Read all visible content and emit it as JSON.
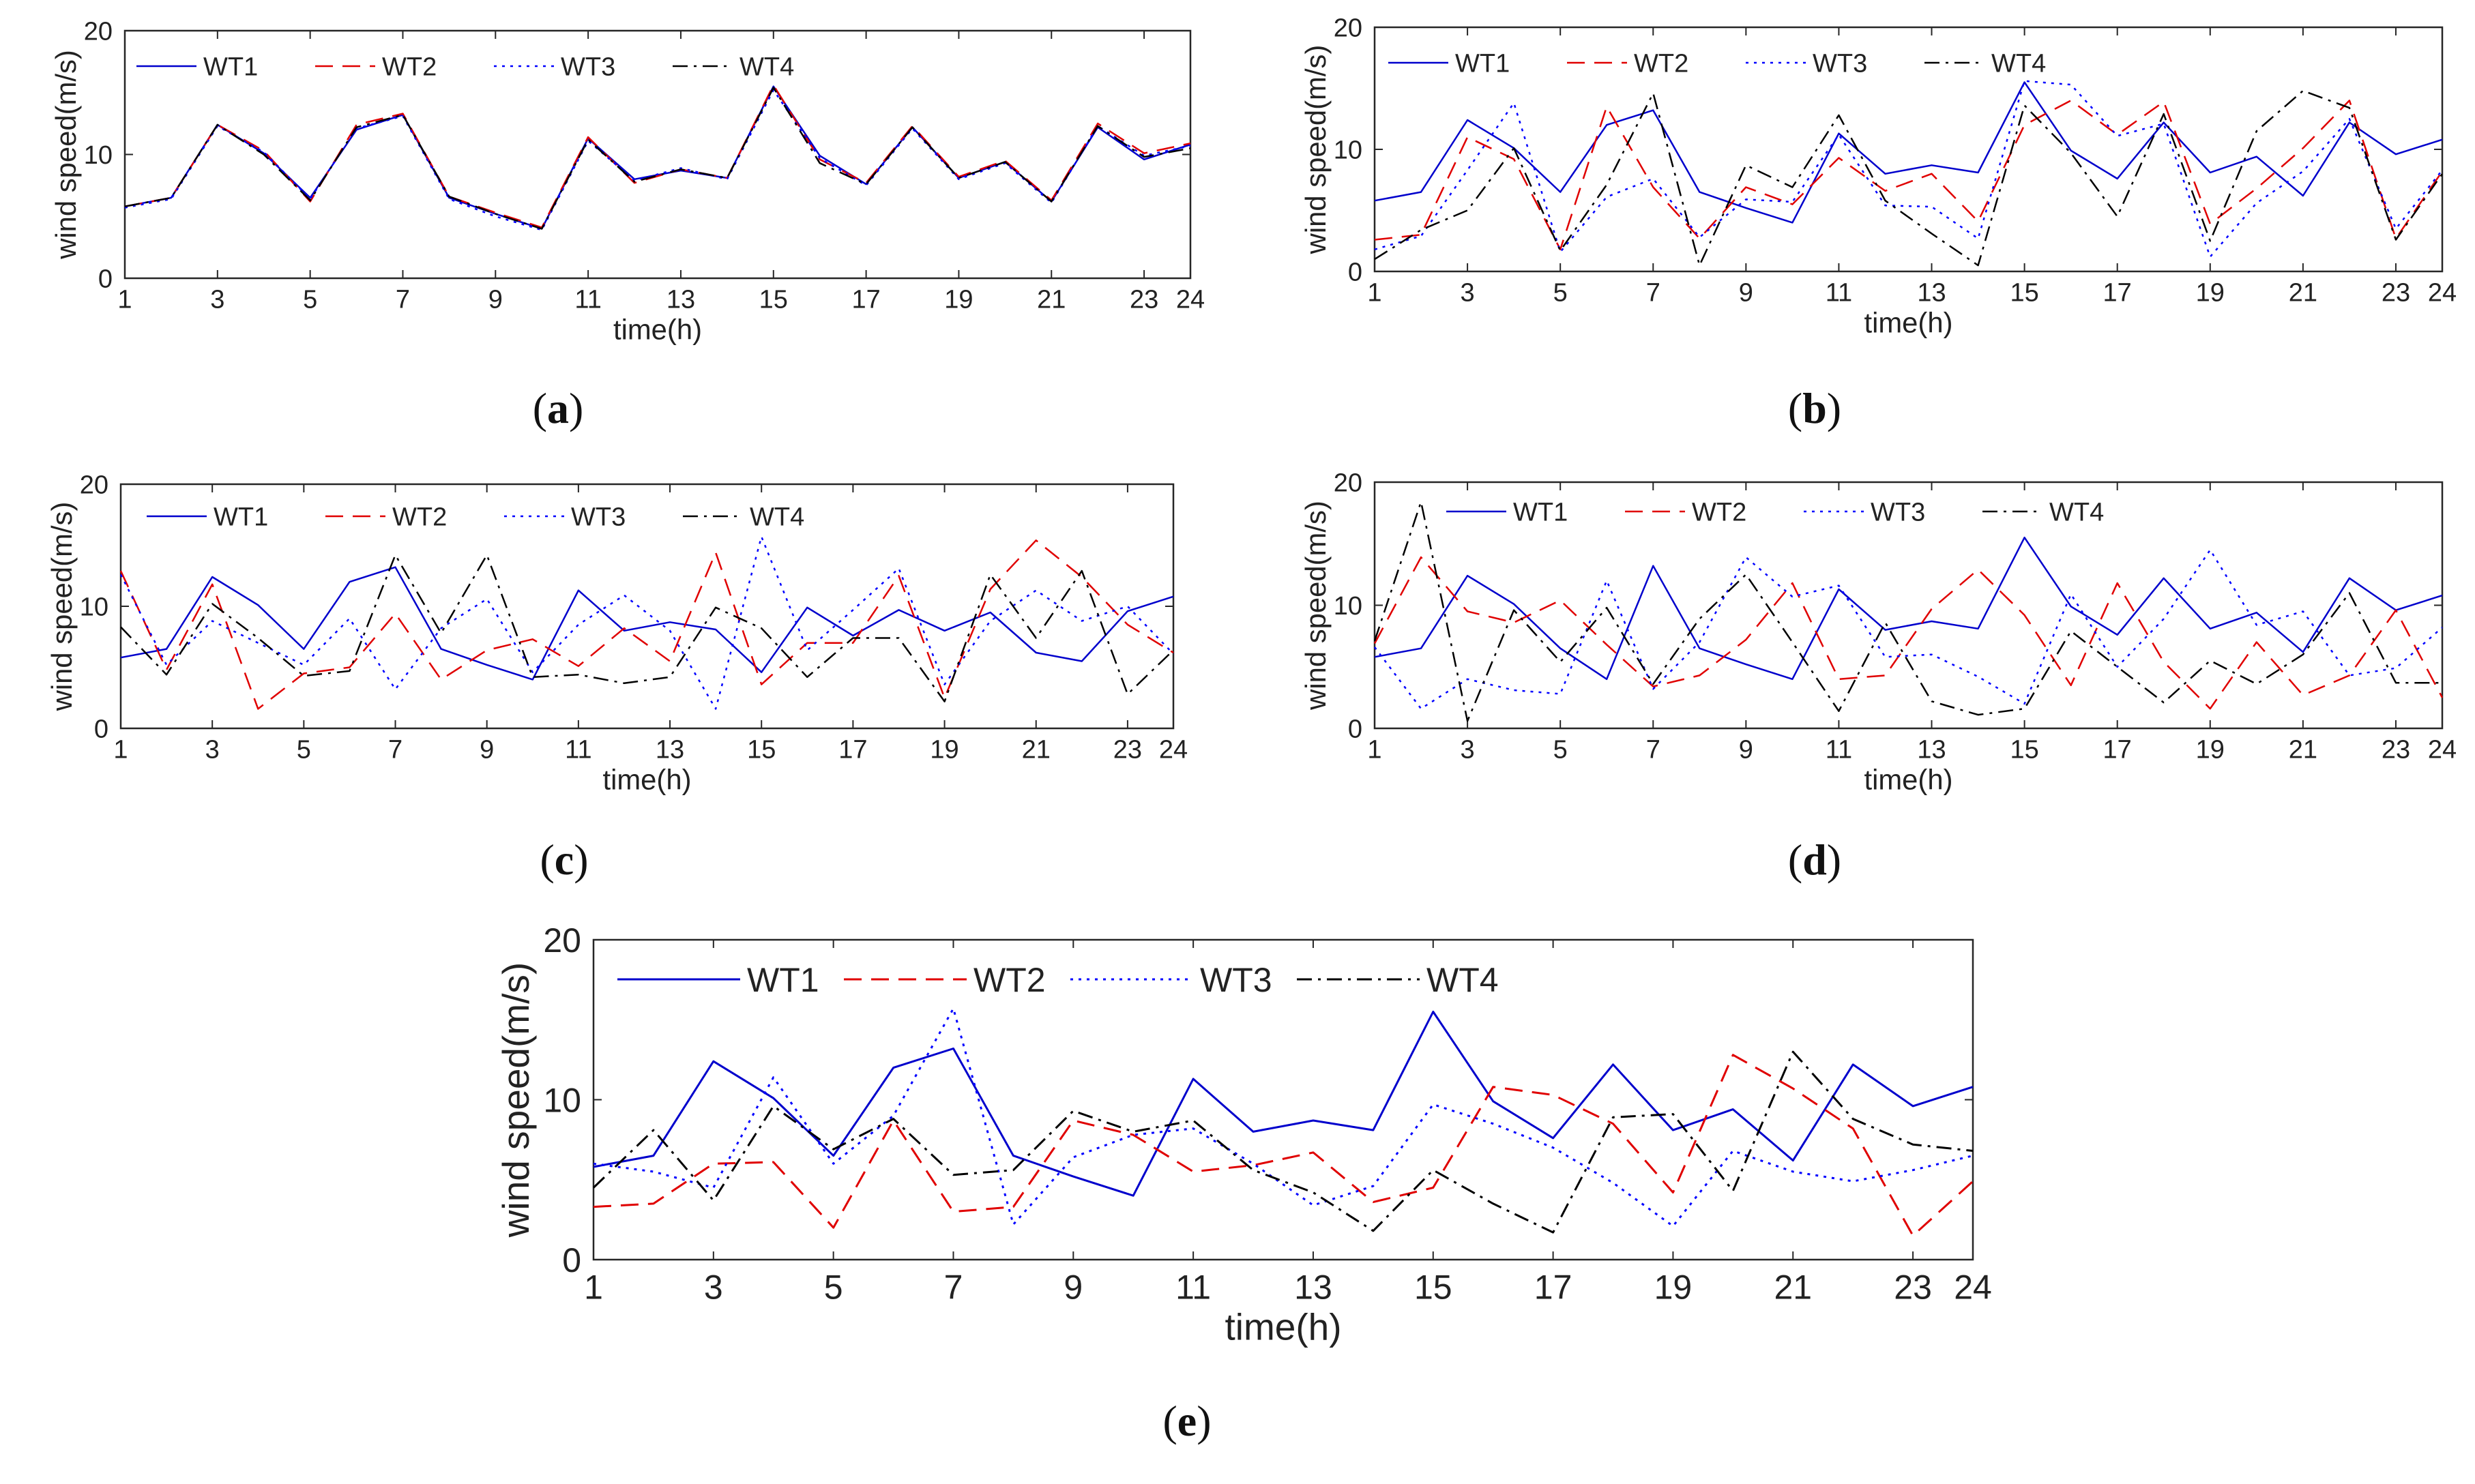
{
  "figure": {
    "panel_labels": [
      "(a)",
      "(b)",
      "(c)",
      "(d)",
      "(e)"
    ]
  },
  "chart_data": [
    {
      "type": "line",
      "panel": "(a)",
      "xlabel": "time(h)",
      "ylabel": "wind speed(m/s)",
      "xlim": [
        1,
        24
      ],
      "ylim": [
        0,
        20
      ],
      "xticks": [
        "1",
        "3",
        "5",
        "7",
        "9",
        "11",
        "13",
        "15",
        "17",
        "19",
        "21",
        "23",
        "24"
      ],
      "yticks": [
        "0",
        "10",
        "20"
      ],
      "legend_position": "top-left",
      "x": [
        1,
        2,
        3,
        4,
        5,
        6,
        7,
        8,
        9,
        10,
        11,
        12,
        13,
        14,
        15,
        16,
        17,
        18,
        19,
        20,
        21,
        22,
        23,
        24
      ],
      "series": [
        {
          "name": "WT1",
          "color": "#0000cc",
          "style": "solid",
          "values": [
            5.8,
            6.5,
            12.4,
            10.1,
            6.5,
            12.0,
            13.2,
            6.5,
            5.2,
            4.0,
            11.3,
            8.0,
            8.7,
            8.1,
            15.5,
            9.9,
            7.6,
            12.2,
            8.1,
            9.4,
            6.2,
            12.2,
            9.6,
            10.8
          ]
        },
        {
          "name": "WT2",
          "color": "#e00000",
          "style": "dashed",
          "values": [
            5.8,
            6.5,
            12.4,
            10.3,
            6.2,
            12.4,
            13.3,
            6.6,
            5.3,
            4.1,
            11.4,
            7.7,
            8.8,
            8.1,
            15.6,
            9.6,
            7.7,
            12.3,
            8.2,
            9.5,
            6.3,
            12.5,
            10.1,
            10.9
          ]
        },
        {
          "name": "WT3",
          "color": "#0000ff",
          "style": "dotted",
          "values": [
            5.7,
            6.4,
            12.3,
            10.2,
            6.4,
            12.1,
            13.1,
            6.4,
            5.0,
            3.9,
            11.1,
            7.9,
            8.9,
            8.0,
            15.2,
            9.7,
            7.5,
            12.1,
            8.0,
            9.3,
            6.1,
            12.3,
            9.9,
            10.7
          ]
        },
        {
          "name": "WT4",
          "color": "#000000",
          "style": "dashdot",
          "values": [
            5.8,
            6.5,
            12.4,
            10.0,
            6.3,
            12.2,
            13.2,
            6.6,
            5.2,
            4.0,
            11.2,
            7.8,
            8.8,
            8.1,
            15.4,
            9.3,
            7.6,
            12.2,
            8.1,
            9.4,
            6.2,
            12.3,
            9.8,
            10.5
          ]
        }
      ]
    },
    {
      "type": "line",
      "panel": "(b)",
      "xlabel": "time(h)",
      "ylabel": "wind speed(m/s)",
      "xlim": [
        1,
        24
      ],
      "ylim": [
        0,
        20
      ],
      "xticks": [
        "1",
        "3",
        "5",
        "7",
        "9",
        "11",
        "13",
        "15",
        "17",
        "19",
        "21",
        "23",
        "24"
      ],
      "yticks": [
        "0",
        "10",
        "20"
      ],
      "legend_position": "top-left",
      "x": [
        1,
        2,
        3,
        4,
        5,
        6,
        7,
        8,
        9,
        10,
        11,
        12,
        13,
        14,
        15,
        16,
        17,
        18,
        19,
        20,
        21,
        22,
        23,
        24
      ],
      "series": [
        {
          "name": "WT1",
          "color": "#0000cc",
          "style": "solid",
          "values": [
            5.8,
            6.5,
            12.4,
            10.1,
            6.5,
            12.0,
            13.2,
            6.5,
            5.2,
            4.0,
            11.3,
            8.0,
            8.7,
            8.1,
            15.5,
            9.9,
            7.6,
            12.2,
            8.1,
            9.4,
            6.2,
            12.2,
            9.6,
            10.8
          ]
        },
        {
          "name": "WT2",
          "color": "#e00000",
          "style": "dashed",
          "values": [
            2.6,
            3.0,
            11.0,
            9.2,
            1.8,
            13.5,
            6.9,
            2.7,
            6.9,
            5.5,
            9.3,
            6.6,
            8.0,
            4.1,
            12.0,
            14.0,
            11.2,
            13.9,
            3.9,
            6.8,
            10.1,
            14.0,
            2.7,
            8.2
          ]
        },
        {
          "name": "WT3",
          "color": "#0000ff",
          "style": "dotted",
          "values": [
            1.8,
            2.9,
            8.3,
            13.8,
            1.6,
            6.1,
            7.6,
            2.8,
            5.9,
            5.7,
            11.2,
            5.4,
            5.3,
            2.7,
            15.6,
            15.3,
            11.1,
            12.1,
            1.2,
            5.6,
            8.2,
            12.5,
            3.5,
            8.3
          ]
        },
        {
          "name": "WT4",
          "color": "#000000",
          "style": "dashdot",
          "values": [
            1.0,
            3.4,
            5.0,
            10.1,
            1.7,
            7.1,
            14.6,
            0.5,
            8.7,
            6.9,
            12.8,
            5.8,
            3.1,
            0.5,
            13.6,
            9.7,
            4.5,
            12.9,
            2.5,
            11.5,
            14.8,
            13.4,
            2.6,
            8.0
          ]
        }
      ]
    },
    {
      "type": "line",
      "panel": "(c)",
      "xlabel": "time(h)",
      "ylabel": "wind speed(m/s)",
      "xlim": [
        1,
        24
      ],
      "ylim": [
        0,
        20
      ],
      "xticks": [
        "1",
        "3",
        "5",
        "7",
        "9",
        "11",
        "13",
        "15",
        "17",
        "19",
        "21",
        "23",
        "24"
      ],
      "yticks": [
        "0",
        "10",
        "20"
      ],
      "legend_position": "top-left",
      "x": [
        1,
        2,
        3,
        4,
        5,
        6,
        7,
        8,
        9,
        10,
        11,
        12,
        13,
        14,
        15,
        16,
        17,
        18,
        19,
        20,
        21,
        22,
        23,
        24
      ],
      "series": [
        {
          "name": "WT1",
          "color": "#0000cc",
          "style": "solid",
          "values": [
            5.8,
            6.5,
            12.4,
            10.1,
            6.5,
            12.0,
            13.2,
            6.5,
            5.2,
            4.0,
            11.3,
            8.0,
            8.7,
            8.1,
            4.6,
            9.9,
            7.6,
            9.7,
            8.0,
            9.5,
            6.2,
            5.5,
            9.6,
            10.8
          ]
        },
        {
          "name": "WT2",
          "color": "#e00000",
          "style": "dashed",
          "values": [
            12.9,
            4.8,
            11.8,
            1.6,
            4.5,
            5.0,
            9.4,
            4.0,
            6.4,
            7.3,
            5.1,
            8.2,
            5.5,
            14.4,
            3.6,
            7.0,
            7.0,
            12.5,
            2.5,
            11.4,
            15.4,
            12.4,
            8.5,
            6.2
          ]
        },
        {
          "name": "WT3",
          "color": "#0000ff",
          "style": "dotted",
          "values": [
            12.6,
            5.2,
            8.8,
            7.0,
            5.2,
            9.0,
            3.2,
            8.2,
            10.6,
            4.6,
            8.5,
            10.9,
            8.0,
            1.6,
            15.7,
            6.4,
            9.7,
            13.1,
            3.6,
            8.8,
            11.3,
            8.8,
            10.0,
            6.1
          ]
        },
        {
          "name": "WT4",
          "color": "#000000",
          "style": "dashdot",
          "values": [
            8.3,
            4.4,
            10.2,
            7.4,
            4.3,
            4.7,
            14.2,
            7.8,
            14.2,
            4.2,
            4.4,
            3.7,
            4.2,
            9.9,
            8.2,
            4.2,
            7.4,
            7.4,
            2.2,
            12.6,
            7.4,
            12.9,
            2.8,
            6.4
          ]
        }
      ]
    },
    {
      "type": "line",
      "panel": "(d)",
      "xlabel": "time(h)",
      "ylabel": "wind speed(m/s)",
      "xlim": [
        1,
        24
      ],
      "ylim": [
        0,
        20
      ],
      "xticks": [
        "1",
        "3",
        "5",
        "7",
        "9",
        "11",
        "13",
        "15",
        "17",
        "19",
        "21",
        "23",
        "24"
      ],
      "yticks": [
        "0",
        "10",
        "20"
      ],
      "legend_position": "top-left",
      "x": [
        1,
        2,
        3,
        4,
        5,
        6,
        7,
        8,
        9,
        10,
        11,
        12,
        13,
        14,
        15,
        16,
        17,
        18,
        19,
        20,
        21,
        22,
        23,
        24
      ],
      "series": [
        {
          "name": "WT1",
          "color": "#0000cc",
          "style": "solid",
          "values": [
            5.8,
            6.5,
            12.4,
            10.1,
            6.5,
            4.0,
            13.2,
            6.5,
            5.2,
            4.0,
            11.3,
            8.0,
            8.7,
            8.1,
            15.5,
            9.9,
            7.6,
            12.2,
            8.1,
            9.4,
            6.2,
            12.2,
            9.6,
            10.8
          ]
        },
        {
          "name": "WT2",
          "color": "#e00000",
          "style": "dashed",
          "values": [
            6.9,
            13.9,
            9.5,
            8.6,
            10.4,
            6.8,
            3.4,
            4.3,
            7.2,
            11.8,
            4.0,
            4.3,
            9.7,
            12.9,
            9.2,
            3.5,
            11.8,
            5.4,
            1.6,
            7.0,
            2.7,
            4.3,
            9.6,
            2.5
          ]
        },
        {
          "name": "WT3",
          "color": "#0000ff",
          "style": "dotted",
          "values": [
            6.6,
            1.6,
            4.0,
            3.1,
            2.8,
            12.0,
            3.2,
            7.0,
            13.9,
            10.7,
            11.6,
            5.8,
            6.0,
            4.2,
            2.0,
            10.9,
            5.0,
            8.9,
            14.5,
            8.4,
            9.5,
            4.3,
            4.9,
            8.2
          ]
        },
        {
          "name": "WT4",
          "color": "#000000",
          "style": "dashdot",
          "values": [
            7.1,
            18.4,
            0.6,
            9.6,
            5.4,
            9.8,
            3.6,
            8.9,
            12.5,
            7.0,
            1.4,
            8.6,
            2.2,
            1.1,
            1.6,
            7.9,
            5.0,
            2.1,
            5.5,
            3.6,
            6.0,
            11.0,
            3.7,
            3.7
          ]
        }
      ]
    },
    {
      "type": "line",
      "panel": "(e)",
      "xlabel": "time(h)",
      "ylabel": "wind speed(m/s)",
      "xlim": [
        1,
        24
      ],
      "ylim": [
        0,
        20
      ],
      "xticks": [
        "1",
        "3",
        "5",
        "7",
        "9",
        "11",
        "13",
        "15",
        "17",
        "19",
        "21",
        "23",
        "24"
      ],
      "yticks": [
        "0",
        "10",
        "20"
      ],
      "legend_position": "top-left",
      "x": [
        1,
        2,
        3,
        4,
        5,
        6,
        7,
        8,
        9,
        10,
        11,
        12,
        13,
        14,
        15,
        16,
        17,
        18,
        19,
        20,
        21,
        22,
        23,
        24
      ],
      "series": [
        {
          "name": "WT1",
          "color": "#0000cc",
          "style": "solid",
          "values": [
            5.8,
            6.5,
            12.4,
            10.1,
            6.5,
            12.0,
            13.2,
            6.5,
            5.2,
            4.0,
            11.3,
            8.0,
            8.7,
            8.1,
            15.5,
            9.9,
            7.6,
            12.2,
            8.1,
            9.4,
            6.2,
            12.2,
            9.6,
            10.8
          ]
        },
        {
          "name": "WT2",
          "color": "#e00000",
          "style": "dashed",
          "values": [
            3.3,
            3.5,
            6.0,
            6.1,
            2.0,
            8.7,
            3.0,
            3.3,
            8.7,
            7.8,
            5.5,
            5.9,
            6.7,
            3.6,
            4.5,
            10.8,
            10.3,
            8.5,
            4.2,
            12.8,
            10.7,
            8.2,
            1.5,
            4.9
          ]
        },
        {
          "name": "WT3",
          "color": "#0000ff",
          "style": "dotted",
          "values": [
            6.0,
            5.5,
            4.5,
            11.4,
            6.0,
            9.0,
            15.7,
            2.2,
            6.4,
            7.8,
            8.2,
            6.0,
            3.4,
            4.6,
            9.7,
            8.5,
            7.0,
            4.8,
            2.1,
            6.8,
            5.5,
            4.9,
            5.6,
            6.5
          ]
        },
        {
          "name": "WT4",
          "color": "#000000",
          "style": "dashdot",
          "values": [
            4.5,
            8.1,
            3.7,
            9.6,
            6.9,
            8.8,
            5.3,
            5.6,
            9.3,
            8.0,
            8.7,
            5.6,
            4.2,
            1.8,
            5.6,
            3.5,
            1.7,
            8.9,
            9.1,
            4.3,
            13.0,
            8.8,
            7.2,
            6.8
          ]
        }
      ]
    }
  ]
}
